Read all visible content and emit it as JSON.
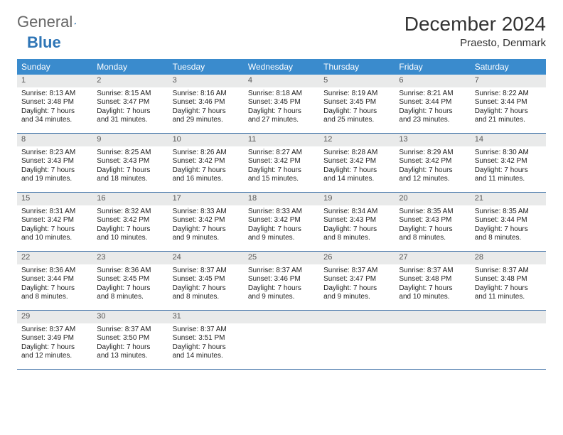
{
  "logo": {
    "text1": "General",
    "text2": "Blue"
  },
  "title": "December 2024",
  "location": "Praesto, Denmark",
  "colors": {
    "header_bg": "#3a8bcd",
    "header_text": "#ffffff",
    "daynum_bg": "#e9eaea",
    "daynum_text": "#555555",
    "week_border": "#3a6ea5",
    "logo_blue": "#2e75b6",
    "body_text": "#222222"
  },
  "dow": [
    "Sunday",
    "Monday",
    "Tuesday",
    "Wednesday",
    "Thursday",
    "Friday",
    "Saturday"
  ],
  "days": [
    {
      "n": 1,
      "sunrise": "8:13 AM",
      "sunset": "3:48 PM",
      "daylight": "7 hours and 34 minutes."
    },
    {
      "n": 2,
      "sunrise": "8:15 AM",
      "sunset": "3:47 PM",
      "daylight": "7 hours and 31 minutes."
    },
    {
      "n": 3,
      "sunrise": "8:16 AM",
      "sunset": "3:46 PM",
      "daylight": "7 hours and 29 minutes."
    },
    {
      "n": 4,
      "sunrise": "8:18 AM",
      "sunset": "3:45 PM",
      "daylight": "7 hours and 27 minutes."
    },
    {
      "n": 5,
      "sunrise": "8:19 AM",
      "sunset": "3:45 PM",
      "daylight": "7 hours and 25 minutes."
    },
    {
      "n": 6,
      "sunrise": "8:21 AM",
      "sunset": "3:44 PM",
      "daylight": "7 hours and 23 minutes."
    },
    {
      "n": 7,
      "sunrise": "8:22 AM",
      "sunset": "3:44 PM",
      "daylight": "7 hours and 21 minutes."
    },
    {
      "n": 8,
      "sunrise": "8:23 AM",
      "sunset": "3:43 PM",
      "daylight": "7 hours and 19 minutes."
    },
    {
      "n": 9,
      "sunrise": "8:25 AM",
      "sunset": "3:43 PM",
      "daylight": "7 hours and 18 minutes."
    },
    {
      "n": 10,
      "sunrise": "8:26 AM",
      "sunset": "3:42 PM",
      "daylight": "7 hours and 16 minutes."
    },
    {
      "n": 11,
      "sunrise": "8:27 AM",
      "sunset": "3:42 PM",
      "daylight": "7 hours and 15 minutes."
    },
    {
      "n": 12,
      "sunrise": "8:28 AM",
      "sunset": "3:42 PM",
      "daylight": "7 hours and 14 minutes."
    },
    {
      "n": 13,
      "sunrise": "8:29 AM",
      "sunset": "3:42 PM",
      "daylight": "7 hours and 12 minutes."
    },
    {
      "n": 14,
      "sunrise": "8:30 AM",
      "sunset": "3:42 PM",
      "daylight": "7 hours and 11 minutes."
    },
    {
      "n": 15,
      "sunrise": "8:31 AM",
      "sunset": "3:42 PM",
      "daylight": "7 hours and 10 minutes."
    },
    {
      "n": 16,
      "sunrise": "8:32 AM",
      "sunset": "3:42 PM",
      "daylight": "7 hours and 10 minutes."
    },
    {
      "n": 17,
      "sunrise": "8:33 AM",
      "sunset": "3:42 PM",
      "daylight": "7 hours and 9 minutes."
    },
    {
      "n": 18,
      "sunrise": "8:33 AM",
      "sunset": "3:42 PM",
      "daylight": "7 hours and 9 minutes."
    },
    {
      "n": 19,
      "sunrise": "8:34 AM",
      "sunset": "3:43 PM",
      "daylight": "7 hours and 8 minutes."
    },
    {
      "n": 20,
      "sunrise": "8:35 AM",
      "sunset": "3:43 PM",
      "daylight": "7 hours and 8 minutes."
    },
    {
      "n": 21,
      "sunrise": "8:35 AM",
      "sunset": "3:44 PM",
      "daylight": "7 hours and 8 minutes."
    },
    {
      "n": 22,
      "sunrise": "8:36 AM",
      "sunset": "3:44 PM",
      "daylight": "7 hours and 8 minutes."
    },
    {
      "n": 23,
      "sunrise": "8:36 AM",
      "sunset": "3:45 PM",
      "daylight": "7 hours and 8 minutes."
    },
    {
      "n": 24,
      "sunrise": "8:37 AM",
      "sunset": "3:45 PM",
      "daylight": "7 hours and 8 minutes."
    },
    {
      "n": 25,
      "sunrise": "8:37 AM",
      "sunset": "3:46 PM",
      "daylight": "7 hours and 9 minutes."
    },
    {
      "n": 26,
      "sunrise": "8:37 AM",
      "sunset": "3:47 PM",
      "daylight": "7 hours and 9 minutes."
    },
    {
      "n": 27,
      "sunrise": "8:37 AM",
      "sunset": "3:48 PM",
      "daylight": "7 hours and 10 minutes."
    },
    {
      "n": 28,
      "sunrise": "8:37 AM",
      "sunset": "3:48 PM",
      "daylight": "7 hours and 11 minutes."
    },
    {
      "n": 29,
      "sunrise": "8:37 AM",
      "sunset": "3:49 PM",
      "daylight": "7 hours and 12 minutes."
    },
    {
      "n": 30,
      "sunrise": "8:37 AM",
      "sunset": "3:50 PM",
      "daylight": "7 hours and 13 minutes."
    },
    {
      "n": 31,
      "sunrise": "8:37 AM",
      "sunset": "3:51 PM",
      "daylight": "7 hours and 14 minutes."
    }
  ],
  "labels": {
    "sunrise": "Sunrise:",
    "sunset": "Sunset:",
    "daylight": "Daylight:"
  }
}
